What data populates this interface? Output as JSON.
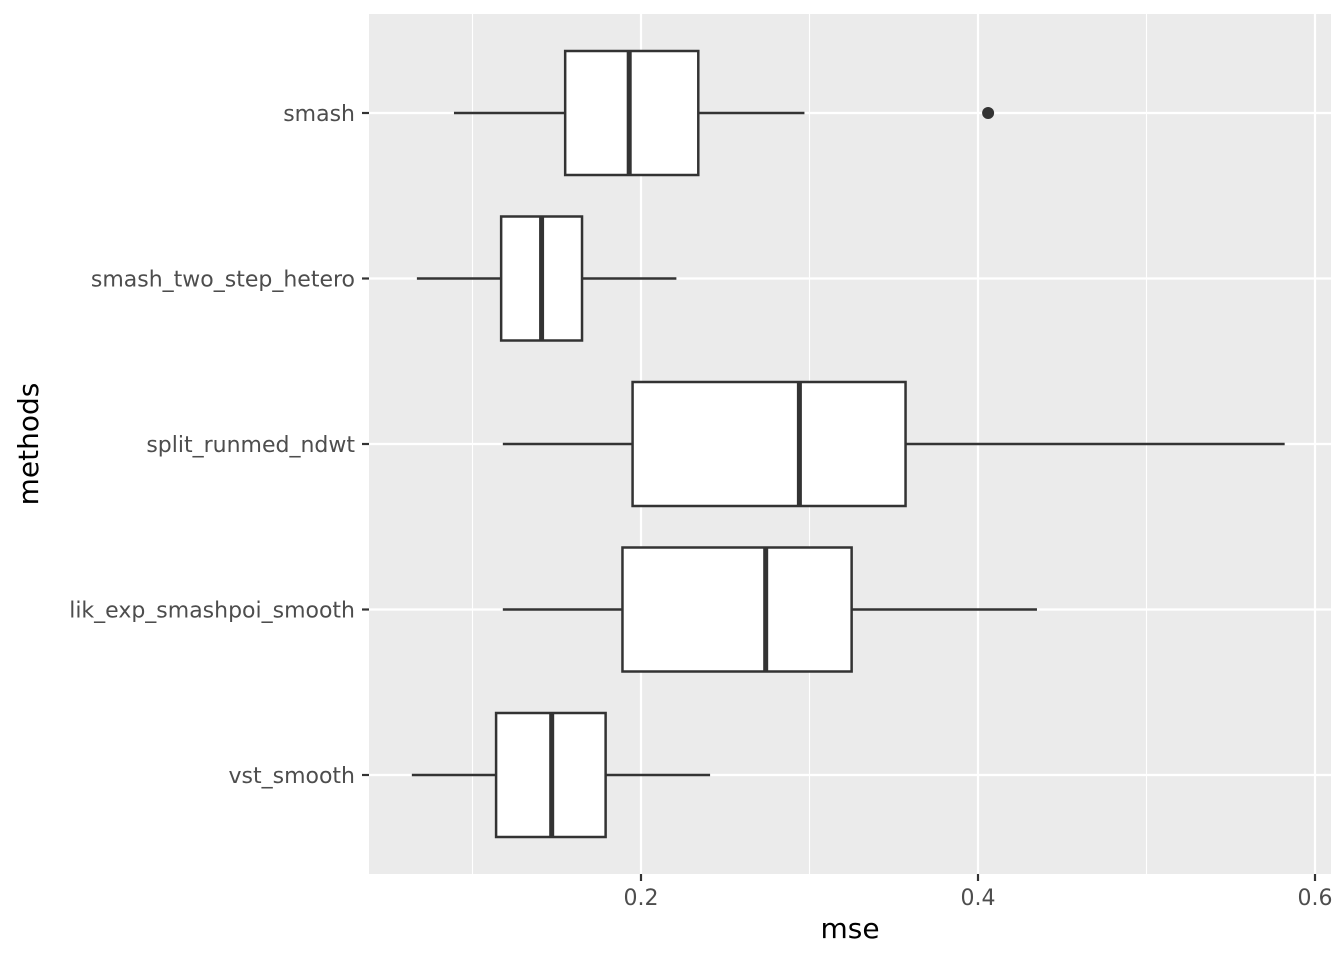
{
  "chart_data": {
    "type": "boxplot",
    "orientation": "horizontal",
    "xlabel": "mse",
    "ylabel": "methods",
    "xlim": [
      0.039,
      0.6
    ],
    "x_ticks": [
      0.2,
      0.4,
      0.6
    ],
    "x_tick_labels": [
      "0.2",
      "0.4",
      "0.6"
    ],
    "x_minor_gridlines": [
      0.1,
      0.3,
      0.5
    ],
    "grid": true,
    "legend": "none",
    "colors": {
      "panel_background": "#ebebeb",
      "grid": "#ffffff",
      "box_fill": "#ffffff",
      "box_stroke": "#333333",
      "outlier": "#333333"
    },
    "categories": [
      "smash",
      "smash_two_step_hetero",
      "split_runmed_ndwt",
      "lik_exp_smashpoi_smooth",
      "vst_smooth"
    ],
    "boxes": [
      {
        "method": "smash",
        "whisker_low": 0.089,
        "q1": 0.155,
        "median": 0.193,
        "q3": 0.234,
        "whisker_high": 0.297,
        "outliers": [
          0.406
        ]
      },
      {
        "method": "smash_two_step_hetero",
        "whisker_low": 0.067,
        "q1": 0.117,
        "median": 0.141,
        "q3": 0.165,
        "whisker_high": 0.221,
        "outliers": []
      },
      {
        "method": "split_runmed_ndwt",
        "whisker_low": 0.118,
        "q1": 0.195,
        "median": 0.294,
        "q3": 0.357,
        "whisker_high": 0.582,
        "outliers": []
      },
      {
        "method": "lik_exp_smashpoi_smooth",
        "whisker_low": 0.118,
        "q1": 0.189,
        "median": 0.274,
        "q3": 0.325,
        "whisker_high": 0.435,
        "outliers": []
      },
      {
        "method": "vst_smooth",
        "whisker_low": 0.064,
        "q1": 0.114,
        "median": 0.147,
        "q3": 0.179,
        "whisker_high": 0.241,
        "outliers": []
      }
    ]
  }
}
